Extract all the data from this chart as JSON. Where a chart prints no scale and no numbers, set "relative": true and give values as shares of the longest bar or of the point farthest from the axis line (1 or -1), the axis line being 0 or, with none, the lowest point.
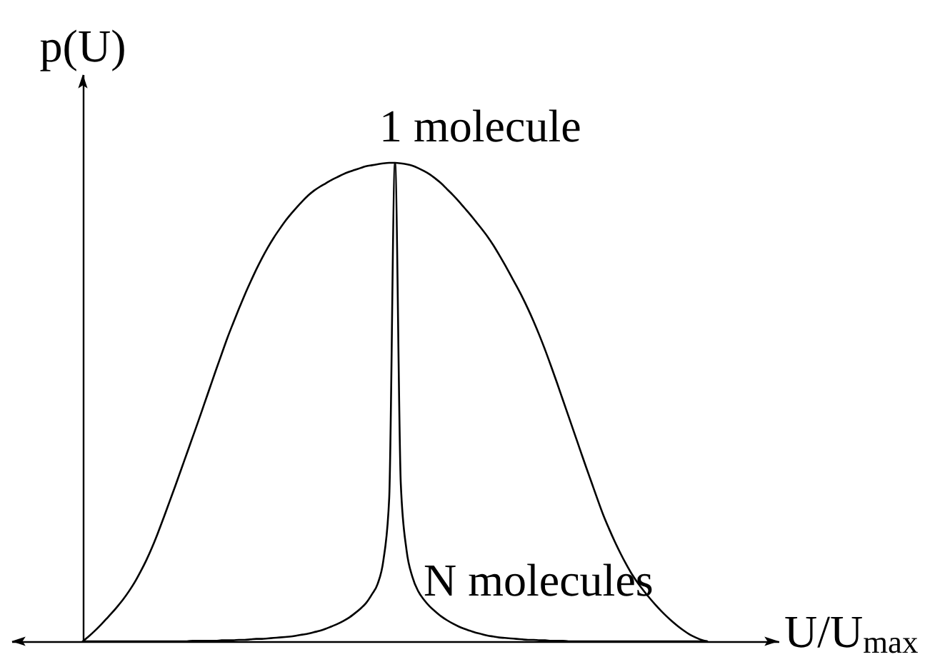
{
  "chart_data": {
    "type": "line",
    "relative": true,
    "xlabel": "U/U$_{max}$",
    "ylabel": "p(U)",
    "categories": [
      null,
      null,
      null,
      null,
      null,
      null,
      null,
      null,
      null,
      null,
      null,
      null,
      null,
      null,
      null,
      null,
      null,
      null,
      null,
      null,
      null,
      null,
      null,
      null,
      null,
      null,
      null,
      null,
      null,
      null,
      null,
      null,
      null,
      null,
      null,
      null,
      null,
      null,
      null,
      null,
      null,
      null,
      null,
      null,
      null,
      null,
      null,
      null,
      null,
      null,
      null,
      null,
      null,
      null,
      null,
      null,
      null,
      null,
      null,
      null,
      null,
      null,
      null,
      null,
      null,
      null,
      null,
      null,
      null,
      null,
      null,
      null,
      null,
      null,
      null,
      null,
      null,
      null,
      null,
      null,
      null,
      null,
      null,
      null,
      null,
      null,
      null,
      null,
      null,
      null,
      null,
      null,
      null,
      null,
      null,
      null,
      null,
      null,
      null,
      null,
      null,
      null,
      null,
      null,
      null,
      null,
      null,
      null,
      null
    ],
    "series": [
      {
        "name": "1 molecule",
        "color": "#000000",
        "values": [
          0,
          0.01,
          0.021,
          0.033,
          0.046,
          0.059,
          0.073,
          0.088,
          0.105,
          0.124,
          0.146,
          0.17,
          0.197,
          0.227,
          0.259,
          0.292,
          0.325,
          0.359,
          0.393,
          0.427,
          0.461,
          0.496,
          0.531,
          0.566,
          0.6,
          0.634,
          0.665,
          0.695,
          0.724,
          0.751,
          0.777,
          0.801,
          0.823,
          0.843,
          0.861,
          0.878,
          0.893,
          0.907,
          0.92,
          0.932,
          0.942,
          0.95,
          0.957,
          0.964,
          0.97,
          0.976,
          0.981,
          0.985,
          0.989,
          0.993,
          0.995,
          0.997,
          0.999,
          1,
          1,
          0.999,
          0.997,
          0.994,
          0.989,
          0.983,
          0.976,
          0.967,
          0.957,
          0.945,
          0.933,
          0.92,
          0.906,
          0.892,
          0.877,
          0.862,
          0.846,
          0.828,
          0.808,
          0.787,
          0.765,
          0.743,
          0.72,
          0.695,
          0.668,
          0.639,
          0.608,
          0.575,
          0.541,
          0.506,
          0.471,
          0.436,
          0.401,
          0.366,
          0.332,
          0.298,
          0.265,
          0.236,
          0.209,
          0.184,
          0.161,
          0.14,
          0.122,
          0.106,
          0.091,
          0.077,
          0.064,
          0.052,
          0.041,
          0.031,
          0.022,
          0.014,
          0.008,
          0.003,
          0
        ]
      },
      {
        "name": "N molecules",
        "color": "#000000",
        "values": [
          0,
          0,
          0,
          0,
          0,
          0,
          0,
          0,
          0,
          0,
          0,
          0,
          0,
          0,
          0,
          0,
          0,
          0,
          0,
          0.001,
          0.001,
          0.001,
          0.001,
          0.001,
          0.002,
          0.002,
          0.002,
          0.003,
          0.003,
          0.004,
          0.005,
          0.005,
          0.006,
          0.007,
          0.008,
          0.009,
          0.01,
          0.012,
          0.014,
          0.016,
          0.019,
          0.022,
          0.026,
          0.031,
          0.036,
          0.042,
          0.049,
          0.058,
          0.068,
          0.08,
          0.098,
          0.12,
          0.17,
          0.3,
          1,
          0.33,
          0.19,
          0.135,
          0.105,
          0.087,
          0.073,
          0.062,
          0.052,
          0.044,
          0.037,
          0.031,
          0.026,
          0.022,
          0.018,
          0.015,
          0.012,
          0.01,
          0.008,
          0.007,
          0.006,
          0.005,
          0.004,
          0.003,
          0.003,
          0.002,
          0.002,
          0.001,
          0.001,
          0.001,
          0,
          0,
          0,
          0,
          0,
          0,
          0,
          0,
          0,
          0,
          0,
          0,
          0,
          0,
          0,
          0,
          0,
          0,
          0,
          0,
          0,
          0,
          0,
          0,
          0
        ]
      }
    ]
  }
}
